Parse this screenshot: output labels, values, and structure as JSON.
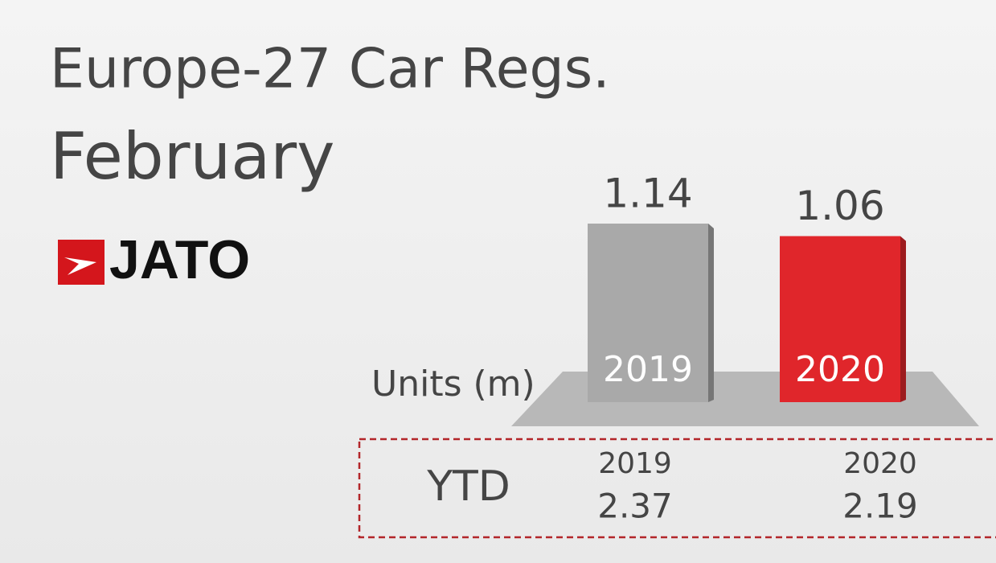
{
  "chart_data": {
    "type": "bar",
    "title": "Europe-27 Car Regs.",
    "subtitle": "February",
    "logo": "JATO",
    "axis_label": "Units (m)",
    "categories": [
      "2019",
      "2020"
    ],
    "values": [
      1.14,
      1.06
    ],
    "colors": [
      "#a9a9a9",
      "#e0262b"
    ],
    "ytd": {
      "label": "YTD",
      "columns": [
        {
          "year": "2019",
          "value": 2.37
        },
        {
          "year": "2020",
          "value": 2.19
        }
      ]
    }
  }
}
